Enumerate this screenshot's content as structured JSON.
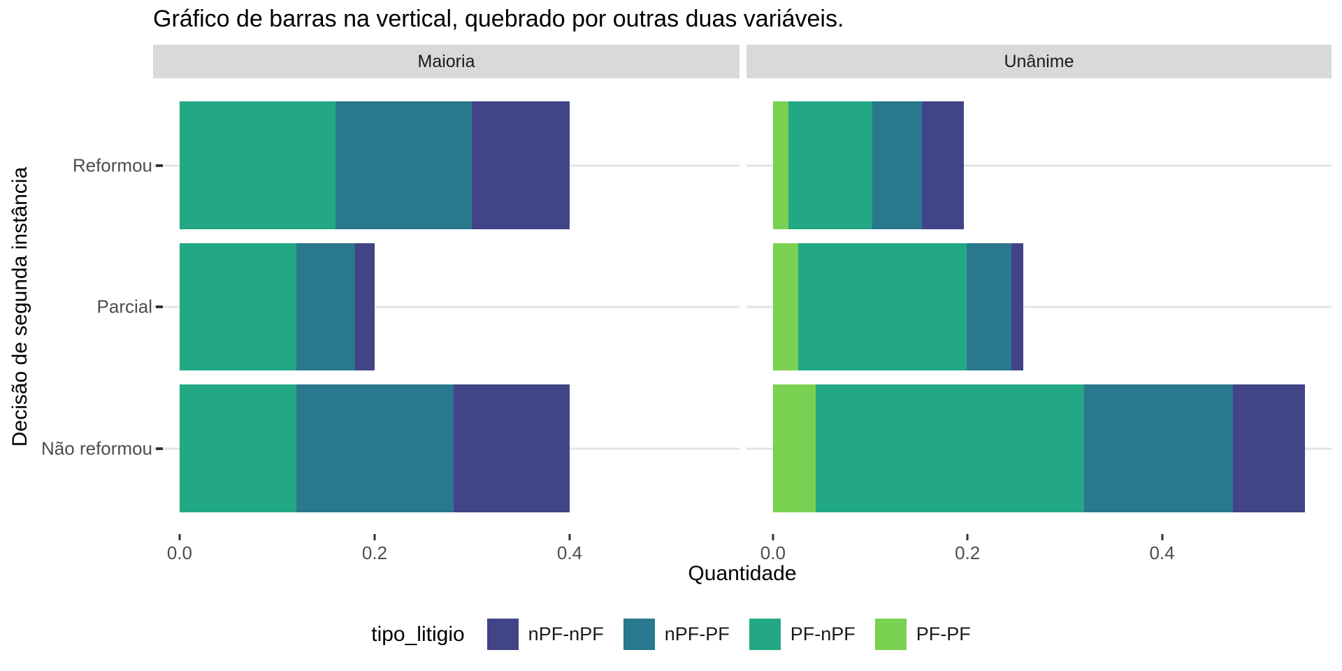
{
  "title": "Gráfico de barras na vertical, quebrado por outras duas variáveis.",
  "chart_data": {
    "type": "bar",
    "orientation": "horizontal-stacked",
    "title": "Gráfico de barras na vertical, quebrado por outras duas variáveis.",
    "xlabel": "Quantidade",
    "ylabel": "Decisão de segunda instância",
    "categories": [
      "Reformou",
      "Parcial",
      "Não reformou"
    ],
    "x_ticks": [
      "0.0",
      "0.2",
      "0.4"
    ],
    "x_tick_values": [
      0,
      0.2,
      0.4
    ],
    "x_domain": [
      -0.0272,
      0.5742
    ],
    "grid": "horizontal-only",
    "stack_order": [
      "PF-PF",
      "PF-nPF",
      "nPF-PF",
      "nPF-nPF"
    ],
    "facets": [
      {
        "label": "Maioria",
        "series": [
          {
            "name": "PF-PF",
            "values": [
              0,
              0,
              0
            ]
          },
          {
            "name": "PF-nPF",
            "values": [
              0.16,
              0.12,
              0.12
            ]
          },
          {
            "name": "nPF-PF",
            "values": [
              0.14,
              0.06,
              0.161
            ]
          },
          {
            "name": "nPF-nPF",
            "values": [
              0.1,
              0.02,
              0.119
            ]
          }
        ]
      },
      {
        "label": "Unânime",
        "series": [
          {
            "name": "PF-PF",
            "values": [
              0.016,
              0.026,
              0.044
            ]
          },
          {
            "name": "PF-nPF",
            "values": [
              0.086,
              0.173,
              0.276
            ]
          },
          {
            "name": "nPF-PF",
            "values": [
              0.051,
              0.046,
              0.153
            ]
          },
          {
            "name": "nPF-nPF",
            "values": [
              0.043,
              0.012,
              0.074
            ]
          }
        ]
      }
    ],
    "colors": {
      "nPF-nPF": "#414487",
      "nPF-PF": "#2A788E",
      "PF-nPF": "#22A884",
      "PF-PF": "#7AD151"
    },
    "legend": {
      "title": "tipo_litigio",
      "position": "bottom",
      "items": [
        {
          "label": "nPF-nPF",
          "color": "#414487"
        },
        {
          "label": "nPF-PF",
          "color": "#2A788E"
        },
        {
          "label": "PF-nPF",
          "color": "#22A884"
        },
        {
          "label": "PF-PF",
          "color": "#7AD151"
        }
      ]
    },
    "style": {
      "strip_background": "#d9d9d9",
      "panel_background": "#ffffff",
      "gridline_color": "#e3e3e3",
      "axis_text_color": "#4d4d4d",
      "tick_color": "#333333"
    }
  }
}
